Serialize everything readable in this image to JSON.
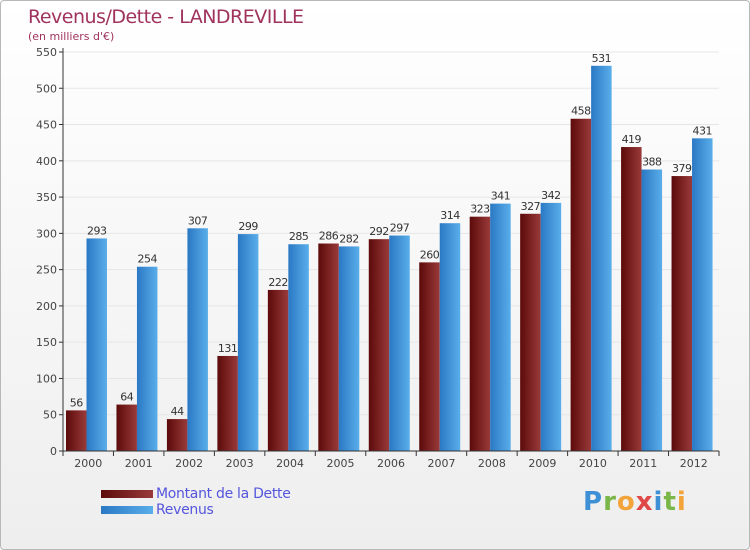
{
  "title": "Revenus/Dette - LANDREVILLE",
  "subtitle": "(en milliers d'€)",
  "logo": {
    "text": "Proxiti",
    "letters": [
      {
        "ch": "P",
        "color": "#3d8fd6"
      },
      {
        "ch": "r",
        "color": "#7ab648"
      },
      {
        "ch": "o",
        "color": "#f2a33a"
      },
      {
        "ch": "x",
        "color": "#e04848"
      },
      {
        "ch": "i",
        "color": "#3d8fd6"
      },
      {
        "ch": "t",
        "color": "#7ab648"
      },
      {
        "ch": "i",
        "color": "#f2a33a"
      }
    ]
  },
  "colors": {
    "dette_dark": "#5c0a0a",
    "dette_light": "#9a3a3a",
    "revenus_dark": "#2a78c4",
    "revenus_light": "#5aaeea",
    "axis_text": "#444444",
    "grid": "#e6e6e6"
  },
  "chart_data": {
    "type": "bar",
    "title": "Revenus/Dette - LANDREVILLE",
    "ylabel": "",
    "xlabel": "",
    "ylim": [
      0,
      550
    ],
    "yticks": [
      0,
      50,
      100,
      150,
      200,
      250,
      300,
      350,
      400,
      450,
      500,
      550
    ],
    "grid": true,
    "legend_position": "bottom-left",
    "categories": [
      "2000",
      "2001",
      "2002",
      "2003",
      "2004",
      "2005",
      "2006",
      "2007",
      "2008",
      "2009",
      "2010",
      "2011",
      "2012"
    ],
    "series": [
      {
        "name": "Montant de la Dette",
        "values": [
          56,
          64,
          44,
          131,
          222,
          286,
          292,
          260,
          323,
          327,
          458,
          419,
          379
        ]
      },
      {
        "name": "Revenus",
        "values": [
          293,
          254,
          307,
          299,
          285,
          282,
          297,
          314,
          341,
          342,
          531,
          388,
          431
        ]
      }
    ]
  }
}
